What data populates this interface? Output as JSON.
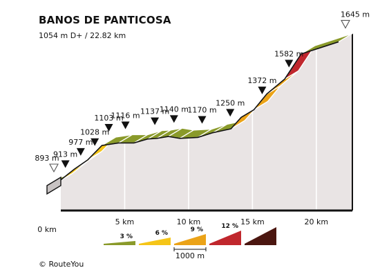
{
  "header": {
    "title": "BANOS DE PANTICOSA",
    "subtitle": "1054 m D+ / 22.82 km"
  },
  "footer": {
    "copyright": "©  RouteYou"
  },
  "colors": {
    "grade_0_3": "#8a9a2a",
    "grade_3_6": "#f5c518",
    "grade_6_9": "#eba318",
    "grade_9_12": "#c0272d",
    "grade_12_plus": "#4b1610",
    "side_face": "#e9e4e4",
    "edge": "#111111"
  },
  "chart_data": {
    "type": "area",
    "title": "BANOS DE PANTICOSA",
    "xlabel": "",
    "ylabel": "",
    "x_unit": "km",
    "y_unit": "m",
    "xlim": [
      0,
      22.82
    ],
    "x_ticks": [
      {
        "value": 0,
        "label": "0 km"
      },
      {
        "value": 5,
        "label": "5 km"
      },
      {
        "value": 10,
        "label": "10 km"
      },
      {
        "value": 15,
        "label": "15 km"
      },
      {
        "value": 20,
        "label": "20 km"
      }
    ],
    "profile": [
      {
        "km": 0.0,
        "elev": 893
      },
      {
        "km": 0.9,
        "elev": 913
      },
      {
        "km": 2.1,
        "elev": 977
      },
      {
        "km": 3.2,
        "elev": 1028
      },
      {
        "km": 4.3,
        "elev": 1103
      },
      {
        "km": 5.6,
        "elev": 1116
      },
      {
        "km": 6.8,
        "elev": 1116
      },
      {
        "km": 7.9,
        "elev": 1137
      },
      {
        "km": 8.6,
        "elev": 1140
      },
      {
        "km": 9.5,
        "elev": 1150
      },
      {
        "km": 10.4,
        "elev": 1140
      },
      {
        "km": 11.8,
        "elev": 1145
      },
      {
        "km": 13.0,
        "elev": 1170
      },
      {
        "km": 14.4,
        "elev": 1190
      },
      {
        "km": 15.2,
        "elev": 1250
      },
      {
        "km": 16.2,
        "elev": 1290
      },
      {
        "km": 17.2,
        "elev": 1372
      },
      {
        "km": 18.6,
        "elev": 1450
      },
      {
        "km": 19.9,
        "elev": 1582
      },
      {
        "km": 22.82,
        "elev": 1645
      }
    ],
    "segment_grades": [
      2,
      4,
      4,
      5,
      1,
      0,
      2,
      1,
      1,
      0,
      1,
      2,
      2,
      7,
      4,
      8,
      6,
      10,
      2
    ],
    "markers": [
      {
        "km": 0.0,
        "label": "893 m",
        "style": "outline"
      },
      {
        "km": 0.9,
        "label": "913 m",
        "style": "filled"
      },
      {
        "km": 2.1,
        "label": "977 m",
        "style": "filled"
      },
      {
        "km": 3.2,
        "label": "1028 m",
        "style": "filled"
      },
      {
        "km": 4.3,
        "label": "1103 m",
        "style": "filled"
      },
      {
        "km": 5.6,
        "label": "1116 m",
        "style": "filled"
      },
      {
        "km": 7.9,
        "label": "1137 m",
        "style": "filled"
      },
      {
        "km": 9.4,
        "label": "1140 m",
        "style": "filled"
      },
      {
        "km": 11.6,
        "label": "1170 m",
        "style": "filled"
      },
      {
        "km": 13.8,
        "label": "1250 m",
        "style": "filled"
      },
      {
        "km": 16.3,
        "label": "1372 m",
        "style": "filled"
      },
      {
        "km": 18.4,
        "label": "1582 m",
        "style": "filled"
      },
      {
        "km": 22.82,
        "label": "1645 m",
        "style": "outline"
      }
    ],
    "legend": {
      "items": [
        {
          "label": "3 %",
          "color": "#8a9a2a"
        },
        {
          "label": "6 %",
          "color": "#f5c518"
        },
        {
          "label": "9 %",
          "color": "#eba318"
        },
        {
          "label": "12 %",
          "color": "#c0272d"
        },
        {
          "label": "",
          "color": "#4b1610"
        }
      ],
      "scale_label": "1000 m"
    }
  }
}
